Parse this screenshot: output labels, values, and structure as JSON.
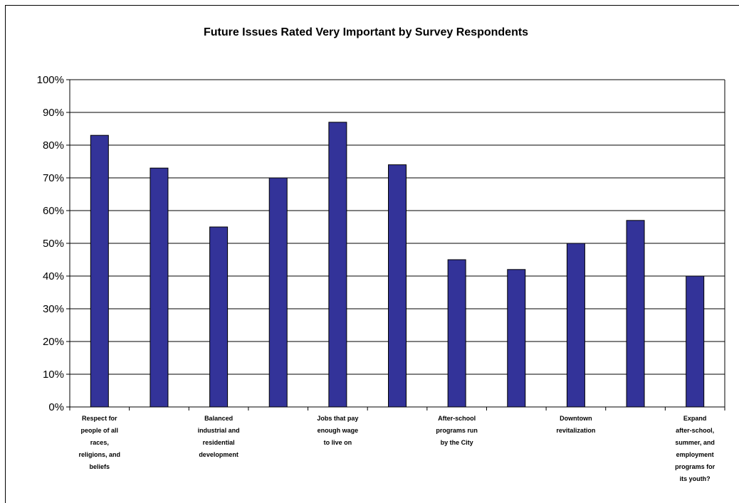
{
  "chart_data": {
    "type": "bar",
    "title": "Future Issues Rated Very Important by Survey Respondents",
    "xlabel": "",
    "ylabel": "",
    "ylim": [
      0,
      100
    ],
    "y_ticks": [
      "0%",
      "10%",
      "20%",
      "30%",
      "40%",
      "50%",
      "60%",
      "70%",
      "80%",
      "90%",
      "100%"
    ],
    "grid": true,
    "legend": "none",
    "bar_color": "#333399",
    "values": [
      83,
      73,
      55,
      70,
      87,
      74,
      45,
      42,
      50,
      57,
      40
    ],
    "category_labels_shown": [
      {
        "index": 0,
        "text": "Respect for people of all races, religions, and beliefs"
      },
      {
        "index": 2,
        "text": "Balanced industrial and residential development"
      },
      {
        "index": 4,
        "text": "Jobs that pay enough wage to live on"
      },
      {
        "index": 6,
        "text": "After-school programs run by the City"
      },
      {
        "index": 8,
        "text": "Downtown revitalization"
      },
      {
        "index": 10,
        "text": "Expand after-school, summer, and employment programs for its youth?"
      }
    ]
  }
}
